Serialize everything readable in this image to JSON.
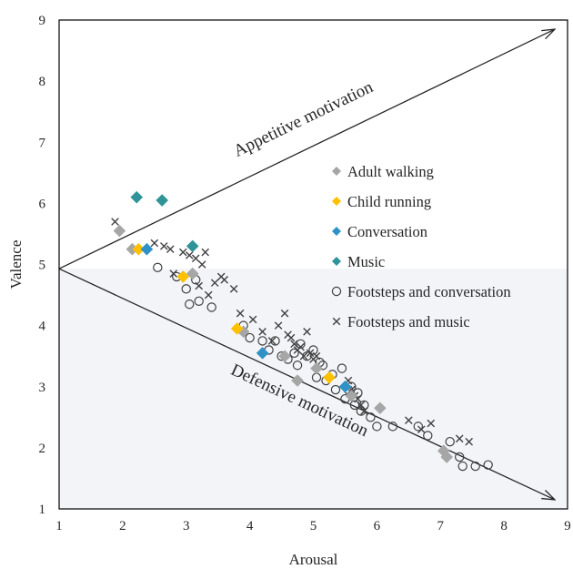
{
  "chart_data": {
    "type": "scatter",
    "xlabel": "Arousal",
    "ylabel": "Valence",
    "xlim": [
      1,
      9
    ],
    "ylim": [
      1,
      9
    ],
    "xticks": [
      "1",
      "2",
      "3",
      "4",
      "5",
      "6",
      "7",
      "8",
      "9"
    ],
    "yticks": [
      "1",
      "2",
      "3",
      "4",
      "5",
      "6",
      "7",
      "8",
      "9"
    ],
    "grid": false,
    "legend_position": "center-right",
    "lower_region_shaded": true,
    "annotations": [
      {
        "text": "Appetitive motivation",
        "from": [
          1,
          4.93
        ],
        "to": [
          8.8,
          8.85
        ]
      },
      {
        "text": "Defensive motivation",
        "from": [
          1,
          4.93
        ],
        "to": [
          8.8,
          1.15
        ]
      }
    ],
    "series": [
      {
        "name": "Adult walking",
        "marker": "diamond",
        "color": "#a6a6a6",
        "x": [
          1.95,
          2.15,
          3.1,
          3.9,
          4.55,
          4.75,
          5.05,
          5.6,
          6.05,
          7.05,
          7.1
        ],
        "y": [
          5.55,
          5.25,
          4.85,
          3.9,
          3.5,
          3.1,
          3.3,
          2.85,
          2.65,
          1.95,
          1.85
        ]
      },
      {
        "name": "Child running",
        "marker": "diamond",
        "color": "#ffc000",
        "x": [
          2.25,
          2.95,
          3.8,
          5.25
        ],
        "y": [
          5.25,
          4.8,
          3.95,
          3.15
        ]
      },
      {
        "name": "Conversation",
        "marker": "diamond",
        "color": "#2e92c7",
        "x": [
          2.38,
          4.2,
          5.5
        ],
        "y": [
          5.25,
          3.55,
          3.0
        ]
      },
      {
        "name": "Music",
        "marker": "diamond",
        "color": "#2e9497",
        "x": [
          2.22,
          2.62,
          3.1
        ],
        "y": [
          6.1,
          6.05,
          5.3
        ]
      },
      {
        "name": "Footsteps and conversation",
        "marker": "circle",
        "color": "#404040",
        "x": [
          2.55,
          2.85,
          3.0,
          3.05,
          3.15,
          3.2,
          3.4,
          3.9,
          4.0,
          4.2,
          4.3,
          4.4,
          4.5,
          4.6,
          4.7,
          4.75,
          4.8,
          4.9,
          5.0,
          5.05,
          5.1,
          5.15,
          5.2,
          5.3,
          5.35,
          5.45,
          5.5,
          5.55,
          5.6,
          5.65,
          5.7,
          5.75,
          5.8,
          5.9,
          6.0,
          6.25,
          6.65,
          6.8,
          7.15,
          7.3,
          7.35,
          7.55,
          7.75
        ],
        "y": [
          4.95,
          4.8,
          4.6,
          4.35,
          4.75,
          4.4,
          4.3,
          4.0,
          3.8,
          3.75,
          3.6,
          3.75,
          3.5,
          3.45,
          3.55,
          3.35,
          3.7,
          3.5,
          3.6,
          3.15,
          3.4,
          3.35,
          3.1,
          3.2,
          2.95,
          3.3,
          2.8,
          2.95,
          3.0,
          2.7,
          2.9,
          2.6,
          2.7,
          2.5,
          2.35,
          2.35,
          2.35,
          2.2,
          2.1,
          1.85,
          1.7,
          1.7,
          1.72
        ]
      },
      {
        "name": "Footsteps and music",
        "marker": "x",
        "color": "#404040",
        "x": [
          1.88,
          2.5,
          2.65,
          2.75,
          2.8,
          2.95,
          3.05,
          3.15,
          3.2,
          3.25,
          3.3,
          3.35,
          3.45,
          3.55,
          3.6,
          3.75,
          3.85,
          4.05,
          4.2,
          4.35,
          4.45,
          4.55,
          4.6,
          4.65,
          4.7,
          4.75,
          4.8,
          4.85,
          4.9,
          4.95,
          5.0,
          5.05,
          5.55,
          5.6,
          5.65,
          5.7,
          5.75,
          5.8,
          6.5,
          6.7,
          6.85,
          7.3,
          7.45
        ],
        "y": [
          5.7,
          5.35,
          5.3,
          5.25,
          4.85,
          5.2,
          5.15,
          5.1,
          4.65,
          5.0,
          5.2,
          4.5,
          4.7,
          4.8,
          4.75,
          4.6,
          4.2,
          4.1,
          3.9,
          3.75,
          4.0,
          4.2,
          3.85,
          3.8,
          3.7,
          3.6,
          3.65,
          3.5,
          3.9,
          3.55,
          3.45,
          3.5,
          3.1,
          2.95,
          2.85,
          2.8,
          2.7,
          2.6,
          2.45,
          2.3,
          2.4,
          2.15,
          2.1
        ]
      }
    ]
  }
}
